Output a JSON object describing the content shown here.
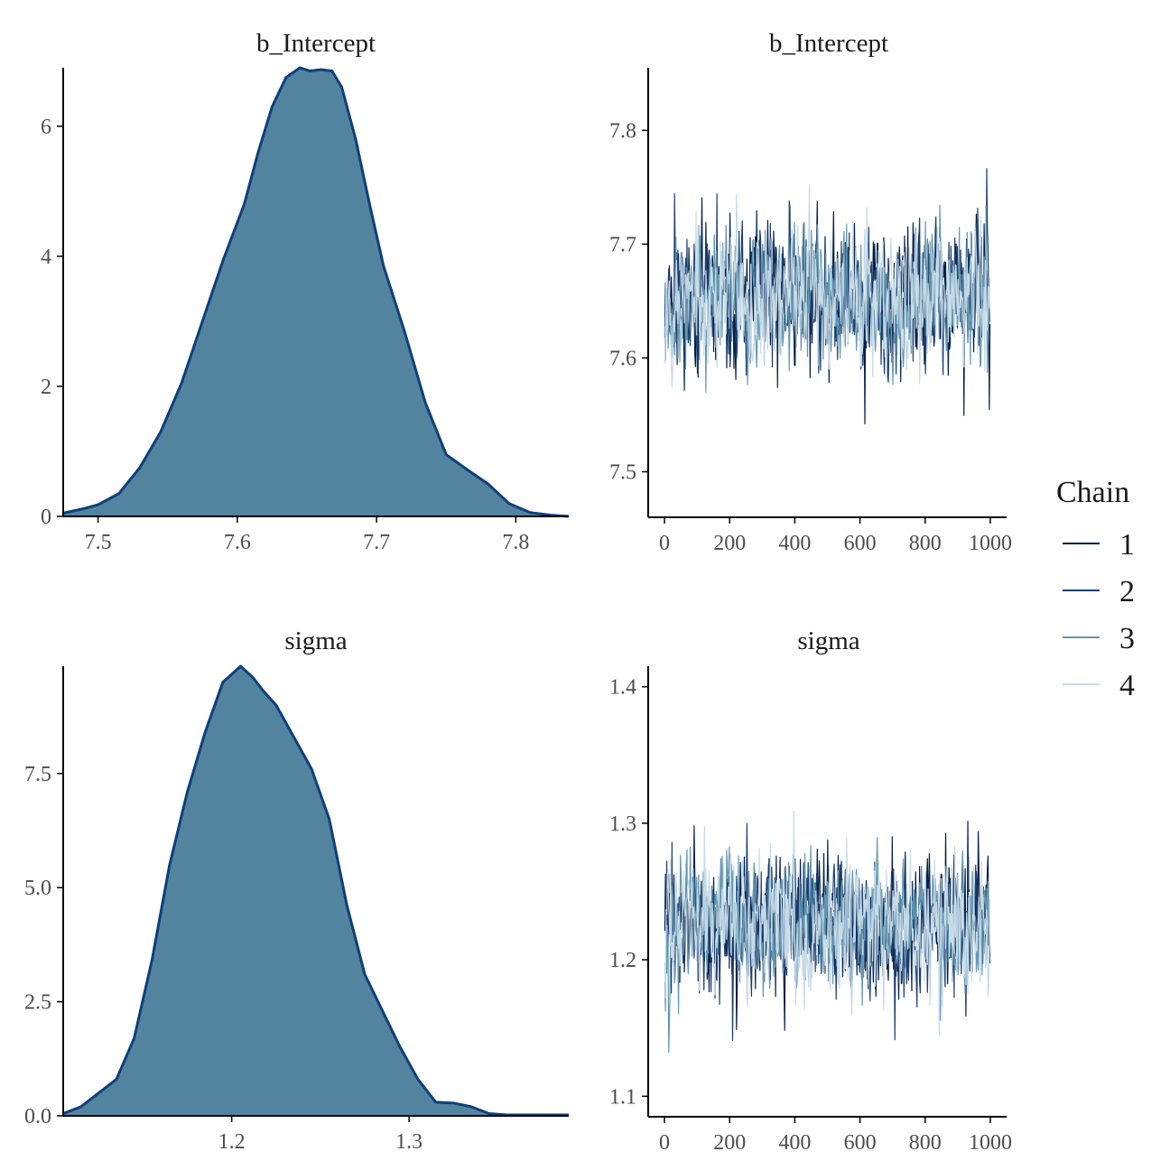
{
  "chart_data": [
    {
      "type": "area",
      "panel": "density-b_Intercept",
      "title": "b_Intercept",
      "xlim": [
        7.475,
        7.838
      ],
      "ylim": [
        0,
        6.9
      ],
      "xticks": [
        7.5,
        7.6,
        7.7,
        7.8
      ],
      "yticks": [
        0,
        2,
        4,
        6
      ],
      "tick_decimals": 1,
      "ytick_decimals": 0,
      "fill_color": "#52849F",
      "line_color": "#0E3F7A",
      "x": [
        7.475,
        7.49,
        7.5,
        7.515,
        7.53,
        7.545,
        7.56,
        7.575,
        7.59,
        7.605,
        7.615,
        7.625,
        7.635,
        7.645,
        7.652,
        7.66,
        7.668,
        7.675,
        7.685,
        7.695,
        7.705,
        7.72,
        7.735,
        7.75,
        7.765,
        7.78,
        7.795,
        7.81,
        7.825,
        7.838
      ],
      "y": [
        0.05,
        0.12,
        0.18,
        0.35,
        0.75,
        1.3,
        2.05,
        3.0,
        3.95,
        4.8,
        5.6,
        6.3,
        6.75,
        6.9,
        6.85,
        6.87,
        6.85,
        6.6,
        5.8,
        4.8,
        3.85,
        2.85,
        1.75,
        0.95,
        0.72,
        0.5,
        0.2,
        0.06,
        0.02,
        0.0
      ]
    },
    {
      "type": "line",
      "panel": "trace-b_Intercept",
      "title": "b_Intercept",
      "xlim": [
        -50,
        1050
      ],
      "ylim": [
        7.46,
        7.855
      ],
      "xticks": [
        0,
        200,
        400,
        600,
        800,
        1000
      ],
      "yticks": [
        7.5,
        7.6,
        7.7,
        7.8
      ],
      "tick_decimals": 1,
      "n_iter": 1000,
      "center": 7.654,
      "spread": 0.05,
      "series": [
        {
          "name": "1",
          "color": "#011F4B",
          "seed": 11
        },
        {
          "name": "2",
          "color": "#1D3F6E",
          "seed": 23
        },
        {
          "name": "3",
          "color": "#6497B1",
          "seed": 37
        },
        {
          "name": "4",
          "color": "#C6DAE7",
          "seed": 53
        }
      ]
    },
    {
      "type": "area",
      "panel": "density-sigma",
      "title": "sigma",
      "xlim": [
        1.105,
        1.39
      ],
      "ylim": [
        0,
        9.85
      ],
      "xticks": [
        1.2,
        1.3
      ],
      "yticks": [
        0.0,
        2.5,
        5.0,
        7.5
      ],
      "tick_decimals": 1,
      "ytick_decimals": 1,
      "fill_color": "#52849F",
      "line_color": "#0E3F7A",
      "x": [
        1.105,
        1.115,
        1.125,
        1.135,
        1.145,
        1.155,
        1.165,
        1.175,
        1.185,
        1.195,
        1.205,
        1.212,
        1.218,
        1.225,
        1.235,
        1.245,
        1.255,
        1.265,
        1.275,
        1.285,
        1.295,
        1.305,
        1.315,
        1.325,
        1.335,
        1.345,
        1.355,
        1.365,
        1.38,
        1.39
      ],
      "y": [
        0.05,
        0.2,
        0.5,
        0.8,
        1.7,
        3.4,
        5.5,
        7.1,
        8.4,
        9.5,
        9.85,
        9.6,
        9.3,
        9.0,
        8.3,
        7.6,
        6.5,
        4.6,
        3.1,
        2.3,
        1.5,
        0.8,
        0.3,
        0.28,
        0.2,
        0.05,
        0.02,
        0.02,
        0.02,
        0.02
      ]
    },
    {
      "type": "line",
      "panel": "trace-sigma",
      "title": "sigma",
      "xlim": [
        -50,
        1050
      ],
      "ylim": [
        1.085,
        1.415
      ],
      "xticks": [
        0,
        200,
        400,
        600,
        800,
        1000
      ],
      "yticks": [
        1.1,
        1.2,
        1.3,
        1.4
      ],
      "tick_decimals": 1,
      "n_iter": 1000,
      "center": 1.225,
      "spread": 0.04,
      "series": [
        {
          "name": "1",
          "color": "#011F4B",
          "seed": 71
        },
        {
          "name": "2",
          "color": "#1D3F6E",
          "seed": 83
        },
        {
          "name": "3",
          "color": "#6497B1",
          "seed": 97
        },
        {
          "name": "4",
          "color": "#C6DAE7",
          "seed": 109
        }
      ]
    }
  ],
  "legend": {
    "title": "Chain",
    "entries": [
      {
        "label": "1",
        "color": "#011F4B"
      },
      {
        "label": "2",
        "color": "#1D3F6E"
      },
      {
        "label": "3",
        "color": "#6497B1"
      },
      {
        "label": "4",
        "color": "#C6DAE7"
      }
    ]
  }
}
